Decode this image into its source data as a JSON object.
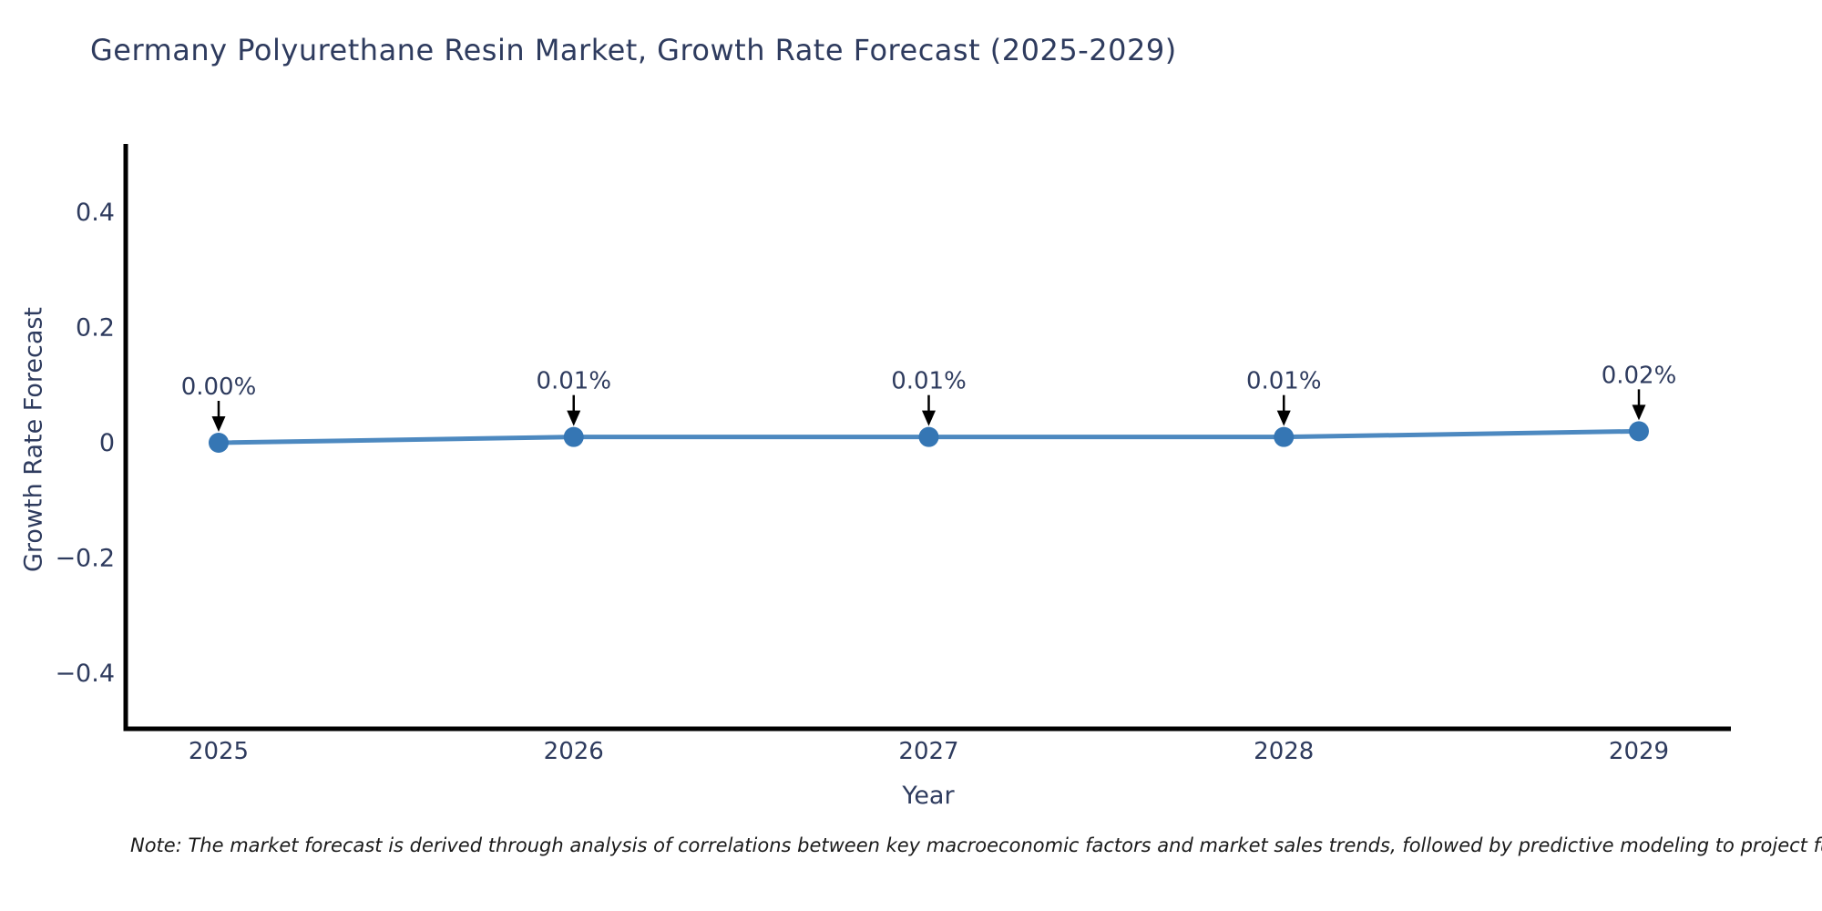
{
  "title": "Germany Polyurethane Resin Market, Growth Rate Forecast (2025-2029)",
  "note": "Note: The market forecast is derived through analysis of correlations between key macroeconomic factors and market sales trends, followed by predictive modeling to project future sales.",
  "chart_data": {
    "type": "line",
    "title": "Germany Polyurethane Resin Market, Growth Rate Forecast (2025-2029)",
    "xlabel": "Year",
    "ylabel": "Growth Rate Forecast",
    "x": [
      2025,
      2026,
      2027,
      2028,
      2029
    ],
    "values": [
      0.0,
      0.01,
      0.01,
      0.01,
      0.02
    ],
    "point_labels": [
      "0.00%",
      "0.01%",
      "0.01%",
      "0.01%",
      "0.02%"
    ],
    "xtick_labels": [
      "2025",
      "2026",
      "2027",
      "2028",
      "2029"
    ],
    "yticks": [
      0.4,
      0.2,
      0,
      -0.2,
      -0.4
    ],
    "ytick_labels": [
      "0.4",
      "0.2",
      "0",
      "−0.2",
      "−0.4"
    ],
    "ylim": [
      -0.5,
      0.51
    ],
    "grid": false,
    "legend": "none",
    "annotation_style": "down-arrow",
    "colors": {
      "line": "#4d89c0",
      "marker": "#3576b4",
      "axis_spine": "#000000",
      "tick_text": "#2e3b5e",
      "annotation_text": "#2e3b5e",
      "annotation_arrow": "#000000",
      "title_text": "#2e3b5e",
      "note_text": "#1a1a1a",
      "background": "#ffffff"
    }
  }
}
